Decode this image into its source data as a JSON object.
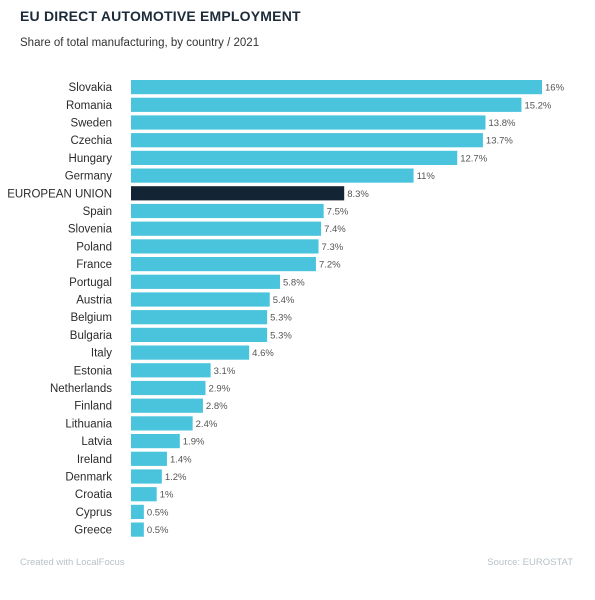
{
  "chart_data": {
    "type": "bar",
    "orientation": "horizontal",
    "title": "EU DIRECT AUTOMOTIVE EMPLOYMENT",
    "subtitle": "Share of total manufacturing, by country / 2021",
    "categories": [
      "Slovakia",
      "Romania",
      "Sweden",
      "Czechia",
      "Hungary",
      "Germany",
      "EUROPEAN UNION",
      "Spain",
      "Slovenia",
      "Poland",
      "France",
      "Portugal",
      "Austria",
      "Belgium",
      "Bulgaria",
      "Italy",
      "Estonia",
      "Netherlands",
      "Finland",
      "Lithuania",
      "Latvia",
      "Ireland",
      "Denmark",
      "Croatia",
      "Cyprus",
      "Greece"
    ],
    "values": [
      16,
      15.2,
      13.8,
      13.7,
      12.7,
      11,
      8.3,
      7.5,
      7.4,
      7.3,
      7.2,
      5.8,
      5.4,
      5.3,
      5.3,
      4.6,
      3.1,
      2.9,
      2.8,
      2.4,
      1.9,
      1.4,
      1.2,
      1,
      0.5,
      0.5
    ],
    "value_labels": [
      "16%",
      "15.2%",
      "13.8%",
      "13.7%",
      "12.7%",
      "11%",
      "8.3%",
      "7.5%",
      "7.4%",
      "7.3%",
      "7.2%",
      "5.8%",
      "5.4%",
      "5.3%",
      "5.3%",
      "4.6%",
      "3.1%",
      "2.9%",
      "2.8%",
      "2.4%",
      "1.9%",
      "1.4%",
      "1.2%",
      "1%",
      "0.5%",
      "0.5%"
    ],
    "highlight_category": "EUROPEAN UNION",
    "xlim": [
      0,
      16
    ],
    "grid": false,
    "colors": {
      "bar": "#4ac3dc",
      "highlight": "#132534"
    }
  },
  "footer": {
    "credit": "Created with LocalFocus",
    "source": "Source: EUROSTAT"
  }
}
